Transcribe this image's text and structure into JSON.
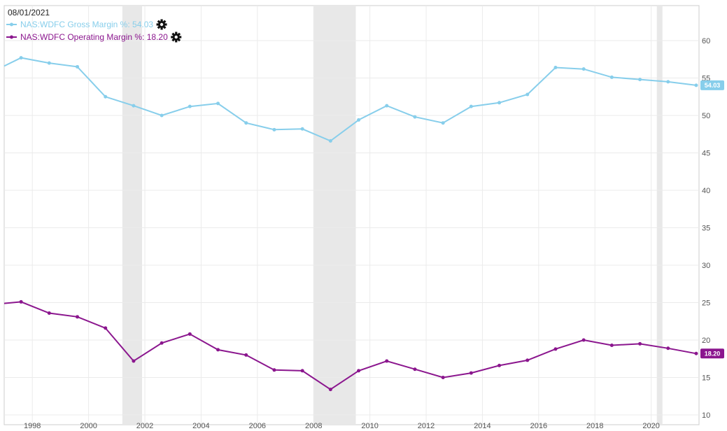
{
  "header": {
    "date": "08/01/2021"
  },
  "legend": [
    {
      "label": "NAS:WDFC Gross Margin %: 54.03",
      "color": "#87ceeb",
      "icon": "gear-icon"
    },
    {
      "label": "NAS:WDFC Operating Margin %: 18.20",
      "color": "#8b168e",
      "icon": "gear-icon"
    }
  ],
  "chart_data": {
    "type": "line",
    "xlim": [
      1997.0,
      2021.7
    ],
    "ylim": [
      10,
      65
    ],
    "x_ticks": [
      "1998",
      "2000",
      "2002",
      "2004",
      "2006",
      "2008",
      "2010",
      "2012",
      "2014",
      "2016",
      "2018",
      "2020"
    ],
    "y_ticks": [
      "10",
      "15",
      "20",
      "25",
      "30",
      "35",
      "40",
      "45",
      "50",
      "55",
      "60"
    ],
    "recession_bands": [
      [
        2001.2,
        2001.9
      ],
      [
        2008.0,
        2009.5
      ],
      [
        2020.2,
        2020.4
      ]
    ],
    "series": [
      {
        "name": "NAS:WDFC Gross Margin %",
        "color": "#87ceeb",
        "end_label": "54.03",
        "points": [
          [
            1997.0,
            56.6
          ],
          [
            1997.6,
            57.7
          ],
          [
            1998.6,
            57.0
          ],
          [
            1999.6,
            56.5
          ],
          [
            2000.6,
            52.5
          ],
          [
            2001.6,
            51.3
          ],
          [
            2002.6,
            50.0
          ],
          [
            2003.6,
            51.2
          ],
          [
            2004.6,
            51.6
          ],
          [
            2005.6,
            49.0
          ],
          [
            2006.6,
            48.1
          ],
          [
            2007.6,
            48.2
          ],
          [
            2008.6,
            46.6
          ],
          [
            2009.6,
            49.4
          ],
          [
            2010.6,
            51.3
          ],
          [
            2011.6,
            49.8
          ],
          [
            2012.6,
            49.0
          ],
          [
            2013.6,
            51.2
          ],
          [
            2014.6,
            51.7
          ],
          [
            2015.6,
            52.8
          ],
          [
            2016.6,
            56.4
          ],
          [
            2017.6,
            56.2
          ],
          [
            2018.6,
            55.1
          ],
          [
            2019.6,
            54.8
          ],
          [
            2020.6,
            54.5
          ],
          [
            2021.6,
            54.03
          ]
        ]
      },
      {
        "name": "NAS:WDFC Operating Margin %",
        "color": "#8b168e",
        "end_label": "18.20",
        "points": [
          [
            1997.0,
            24.9
          ],
          [
            1997.6,
            25.1
          ],
          [
            1998.6,
            23.6
          ],
          [
            1999.6,
            23.1
          ],
          [
            2000.6,
            21.6
          ],
          [
            2001.6,
            17.2
          ],
          [
            2002.6,
            19.6
          ],
          [
            2003.6,
            20.8
          ],
          [
            2004.6,
            18.7
          ],
          [
            2005.6,
            18.0
          ],
          [
            2006.6,
            16.0
          ],
          [
            2007.6,
            15.9
          ],
          [
            2008.6,
            13.4
          ],
          [
            2009.6,
            15.9
          ],
          [
            2010.6,
            17.2
          ],
          [
            2011.6,
            16.1
          ],
          [
            2012.6,
            15.0
          ],
          [
            2013.6,
            15.6
          ],
          [
            2014.6,
            16.6
          ],
          [
            2015.6,
            17.3
          ],
          [
            2016.6,
            18.8
          ],
          [
            2017.6,
            20.0
          ],
          [
            2018.6,
            19.3
          ],
          [
            2019.6,
            19.5
          ],
          [
            2020.6,
            18.9
          ],
          [
            2021.6,
            18.2
          ]
        ]
      }
    ]
  }
}
